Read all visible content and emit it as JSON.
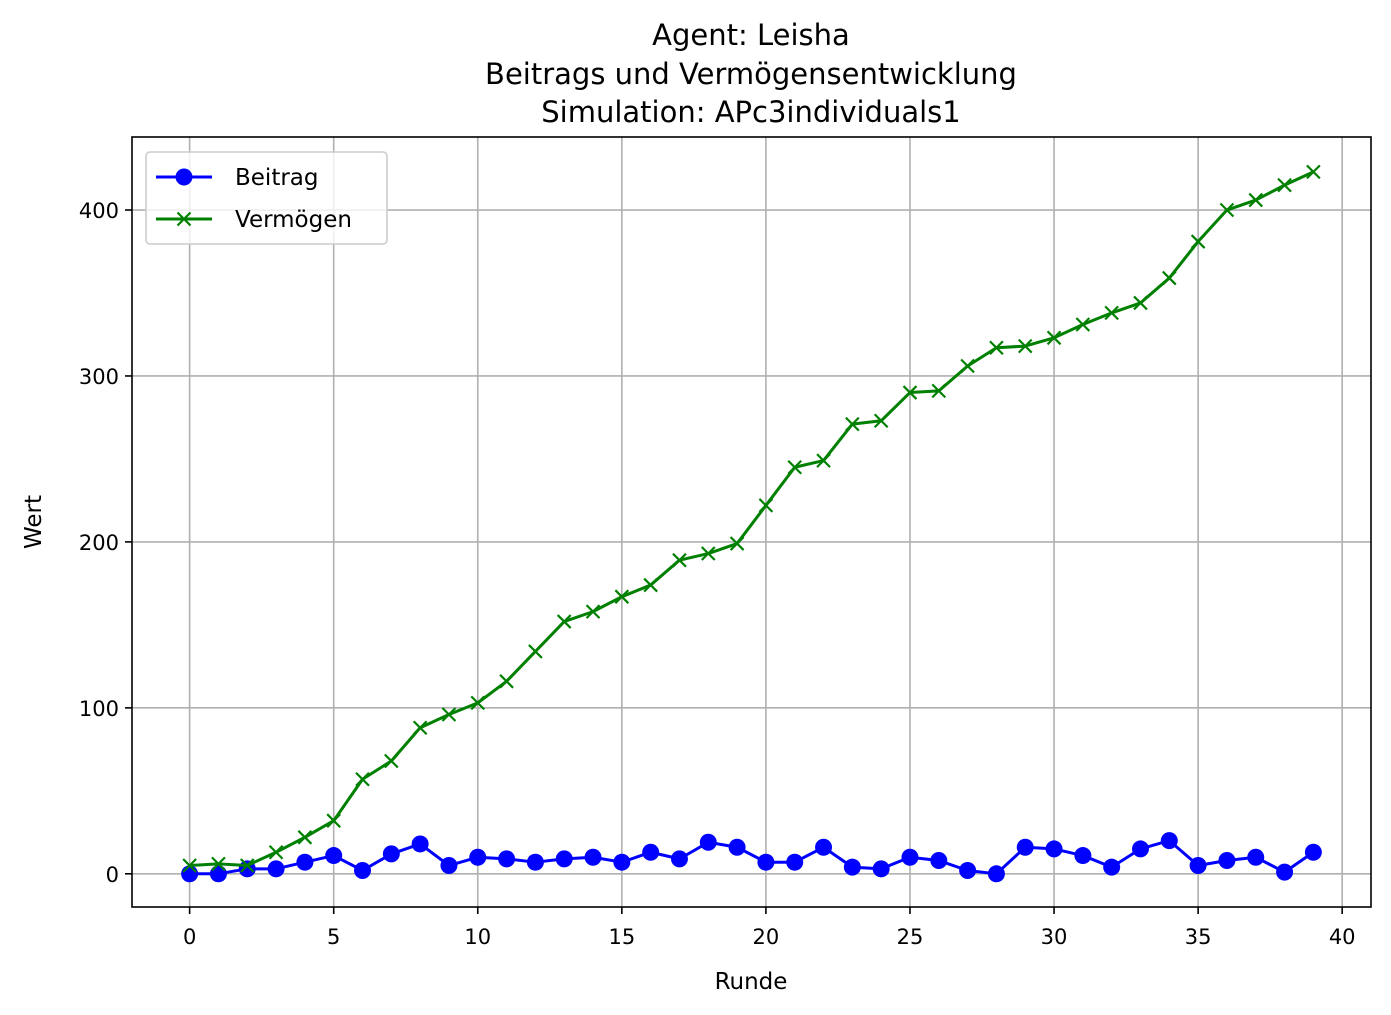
{
  "chart_data": {
    "type": "line",
    "title": [
      "Agent: Leisha",
      "Beitrags und Vermögensentwicklung",
      "Simulation: APc3individuals1"
    ],
    "xlabel": "Runde",
    "ylabel": "Wert",
    "xlim": [
      -2,
      41
    ],
    "ylim": [
      -20,
      444
    ],
    "x_ticks": [
      0,
      5,
      10,
      15,
      20,
      25,
      30,
      35,
      40
    ],
    "y_ticks": [
      0,
      100,
      200,
      300,
      400
    ],
    "grid": true,
    "legend_position": "top-left",
    "x": [
      0,
      1,
      2,
      3,
      4,
      5,
      6,
      7,
      8,
      9,
      10,
      11,
      12,
      13,
      14,
      15,
      16,
      17,
      18,
      19,
      20,
      21,
      22,
      23,
      24,
      25,
      26,
      27,
      28,
      29,
      30,
      31,
      32,
      33,
      34,
      35,
      36,
      37,
      38,
      39
    ],
    "series": [
      {
        "name": "Beitrag",
        "color": "#0000ff",
        "marker": "circle",
        "values": [
          0,
          0,
          3,
          3,
          7,
          11,
          2,
          12,
          18,
          5,
          10,
          9,
          7,
          9,
          10,
          7,
          13,
          9,
          19,
          16,
          7,
          7,
          16,
          4,
          3,
          10,
          8,
          2,
          0,
          16,
          15,
          11,
          4,
          15,
          20,
          5,
          8,
          10,
          1,
          13
        ]
      },
      {
        "name": "Vermögen",
        "color": "#008000",
        "marker": "x",
        "values": [
          5,
          6,
          5,
          13,
          22,
          32,
          57,
          68,
          88,
          96,
          103,
          116,
          134,
          152,
          158,
          167,
          174,
          189,
          193,
          199,
          222,
          245,
          249,
          271,
          273,
          290,
          291,
          306,
          317,
          318,
          323,
          331,
          338,
          344,
          359,
          381,
          400,
          406,
          415,
          423
        ]
      }
    ]
  }
}
